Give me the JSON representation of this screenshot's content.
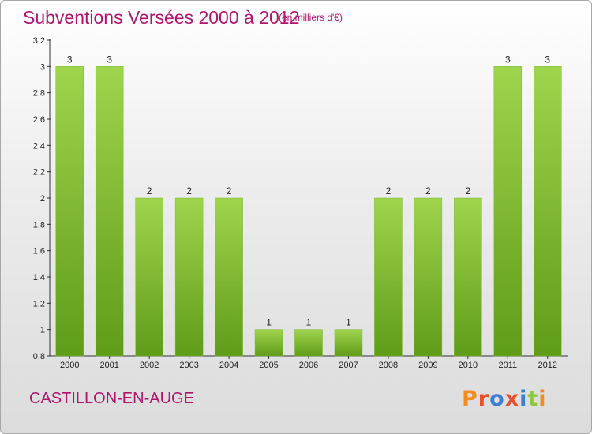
{
  "header": {
    "title": "Subventions Versées 2000 à 2012",
    "unit_note": "(en milliers d'€)"
  },
  "footer": {
    "commune": "CASTILLON-EN-AUGE",
    "logo_text": "Proxiti",
    "logo_colors": [
      "#f28c1e",
      "#e6502a",
      "#3b7fd4",
      "#e6502a",
      "#3b7fd4",
      "#8bc83a",
      "#f28c1e"
    ]
  },
  "colors": {
    "title": "#b0146f",
    "bar_light": "#9fd44d",
    "bar_dark": "#5f9c18"
  },
  "chart_data": {
    "type": "bar",
    "categories": [
      "2000",
      "2001",
      "2002",
      "2003",
      "2004",
      "2005",
      "2006",
      "2007",
      "2008",
      "2009",
      "2010",
      "2011",
      "2012"
    ],
    "values": [
      3,
      3,
      2,
      2,
      2,
      1,
      1,
      1,
      2,
      2,
      2,
      3,
      3
    ],
    "data_labels": [
      "3",
      "3",
      "2",
      "2",
      "2",
      "1",
      "1",
      "1",
      "2",
      "2",
      "2",
      "3",
      "3"
    ],
    "y_ticks": [
      0.8,
      1,
      1.2,
      1.4,
      1.6,
      1.8,
      2,
      2.2,
      2.4,
      2.6,
      2.8,
      3,
      3.2
    ],
    "y_tick_labels": [
      "0.8",
      "1",
      "1.2",
      "1.4",
      "1.6",
      "1.8",
      "2",
      "2.2",
      "2.4",
      "2.6",
      "2.8",
      "3",
      "3.2"
    ],
    "ylim": [
      0.8,
      3.2
    ],
    "grid": false,
    "title": "Subventions Versées 2000 à 2012",
    "xlabel": "",
    "ylabel": ""
  }
}
